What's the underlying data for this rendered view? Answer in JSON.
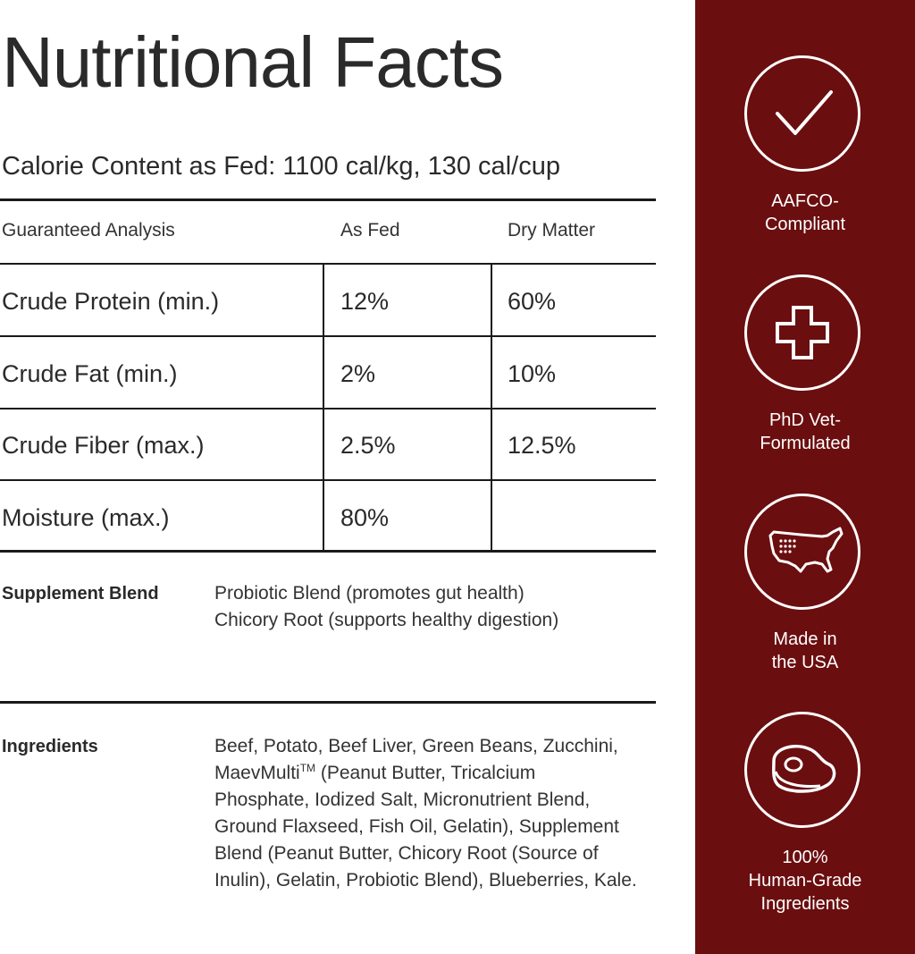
{
  "title": "Nutritional Facts",
  "calorie_content": "Calorie Content as Fed: 1100 cal/kg, 130 cal/cup",
  "table": {
    "headers": [
      "Guaranteed Analysis",
      "As Fed",
      "Dry Matter"
    ],
    "rows": [
      {
        "name": "Crude Protein (min.)",
        "as_fed": "12%",
        "dry_matter": "60%"
      },
      {
        "name": "Crude Fat (min.)",
        "as_fed": "2%",
        "dry_matter": "10%"
      },
      {
        "name": "Crude Fiber (max.)",
        "as_fed": "2.5%",
        "dry_matter": "12.5%"
      },
      {
        "name": "Moisture (max.)",
        "as_fed": "80%",
        "dry_matter": ""
      }
    ]
  },
  "supplement": {
    "label": "Supplement Blend",
    "lines": [
      "Probiotic Blend (promotes gut health)",
      "Chicory Root (supports healthy digestion)"
    ]
  },
  "ingredients": {
    "label": "Ingredients",
    "lines": [
      "Beef, Potato, Beef Liver, Green Beans, Zucchini,",
      "MaevMulti",
      "TM",
      " (Peanut Butter, Tricalcium",
      "Phosphate, Iodized Salt, Micronutrient Blend,",
      "Ground Flaxseed, Fish Oil, Gelatin), Supplement",
      "Blend (Peanut Butter, Chicory Root (Source of",
      "Inulin), Gelatin, Probiotic Blend), Blueberries, Kale."
    ]
  },
  "badges": [
    {
      "icon": "checkmark-icon",
      "line1": "AAFCO-",
      "line2": "Compliant",
      "line3": ""
    },
    {
      "icon": "medical-cross-icon",
      "line1": "PhD Vet-",
      "line2": "Formulated",
      "line3": ""
    },
    {
      "icon": "usa-map-icon",
      "line1": "Made in",
      "line2": "the USA",
      "line3": ""
    },
    {
      "icon": "steak-icon",
      "line1": "100%",
      "line2": "Human-Grade",
      "line3": "Ingredients"
    }
  ],
  "colors": {
    "panel": "#6b0e0f",
    "text": "#2a2a2a",
    "rule": "#1a1a1a"
  }
}
